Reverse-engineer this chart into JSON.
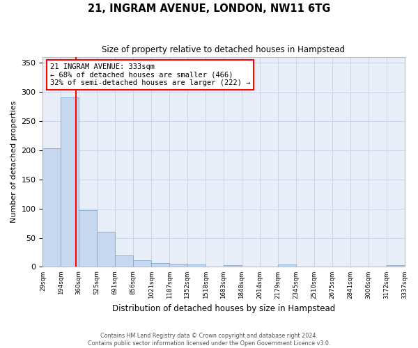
{
  "title": "21, INGRAM AVENUE, LONDON, NW11 6TG",
  "subtitle": "Size of property relative to detached houses in Hampstead",
  "xlabel": "Distribution of detached houses by size in Hampstead",
  "ylabel": "Number of detached properties",
  "bar_edges": [
    29,
    194,
    360,
    525,
    691,
    856,
    1021,
    1187,
    1352,
    1518,
    1683,
    1848,
    2014,
    2179,
    2345,
    2510,
    2675,
    2841,
    3006,
    3172,
    3337
  ],
  "bar_heights": [
    204,
    291,
    97,
    60,
    20,
    11,
    6,
    5,
    4,
    0,
    3,
    0,
    0,
    4,
    0,
    0,
    0,
    0,
    0,
    3
  ],
  "bar_color": "#c5d8f0",
  "bar_edge_color": "#7da8d4",
  "grid_color": "#c8d4e8",
  "bg_color": "#e8eef8",
  "red_line_x": 333,
  "annotation_text": "21 INGRAM AVENUE: 333sqm\n← 68% of detached houses are smaller (466)\n32% of semi-detached houses are larger (222) →",
  "annotation_box_color": "white",
  "annotation_box_edge": "red",
  "ylim": [
    0,
    360
  ],
  "yticks": [
    0,
    50,
    100,
    150,
    200,
    250,
    300,
    350
  ],
  "footer": "Contains HM Land Registry data © Crown copyright and database right 2024.\nContains public sector information licensed under the Open Government Licence v3.0."
}
